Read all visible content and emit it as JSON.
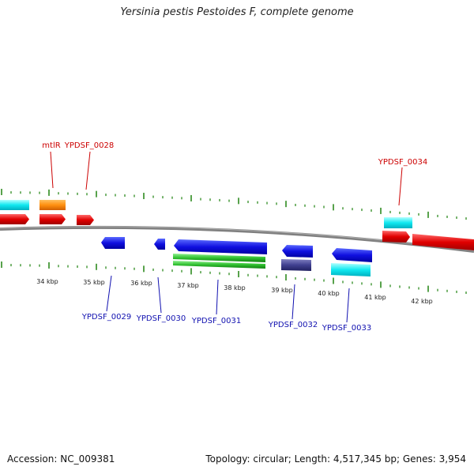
{
  "title": "Yersinia pestis Pestoides F, complete genome",
  "footer": {
    "accession": "Accession: NC_009381",
    "topology": "Topology: circular; Length: 4,517,345 bp; Genes: 3,954"
  },
  "colors": {
    "tick": "#2e8b1f",
    "backbone": "#808080",
    "top_label": "#cc0000",
    "bottom_label": "#1010b0"
  },
  "kbp_labels": [
    "34 kbp",
    "35 kbp",
    "36 kbp",
    "37 kbp",
    "38 kbp",
    "39 kbp",
    "40 kbp",
    "41 kbp",
    "42 kbp"
  ],
  "gene_labels_top": [
    "mtlR",
    "YPDSF_0028",
    "YPDSF_0034"
  ],
  "gene_labels_bottom": [
    "YPDSF_0029",
    "YPDSF_0030",
    "YPDSF_0031",
    "YPDSF_0032",
    "YPDSF_0033"
  ]
}
